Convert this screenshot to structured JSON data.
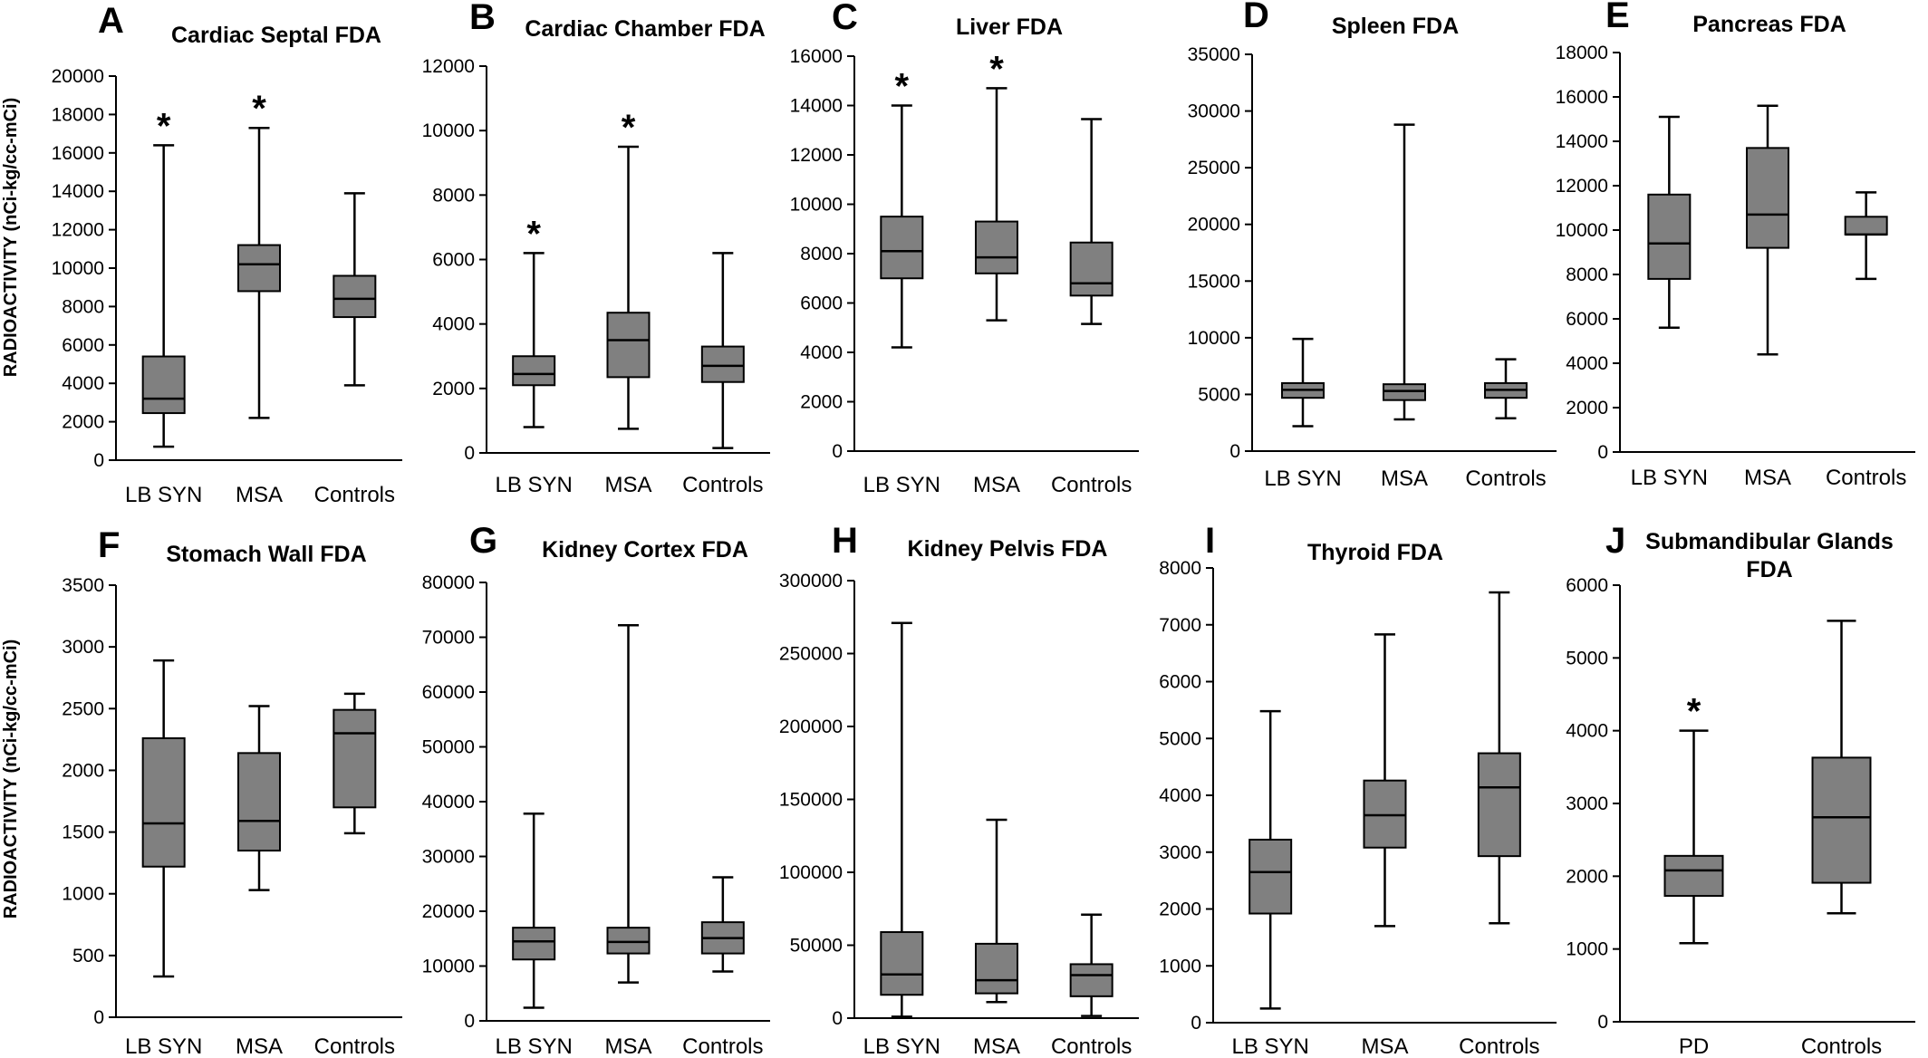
{
  "y_axis_label": "RADIOACTIVITY (nCi-kg/cc-mCi)",
  "colors": {
    "box_fill": "#808080",
    "stroke": "#000000"
  },
  "chart_data": [
    {
      "letter": "A",
      "title": "Cardiac Septal FDA",
      "type": "boxplot",
      "ylim": [
        0,
        20000
      ],
      "yticks": [
        0,
        2000,
        4000,
        6000,
        8000,
        10000,
        12000,
        14000,
        16000,
        18000,
        20000
      ],
      "categories": [
        "LB SYN",
        "MSA",
        "Controls"
      ],
      "boxes": [
        {
          "min": 700,
          "q1": 2450,
          "median": 3200,
          "q3": 5400,
          "max": 16400,
          "star": true
        },
        {
          "min": 2200,
          "q1": 8800,
          "median": 10200,
          "q3": 11200,
          "max": 17300,
          "star": true
        },
        {
          "min": 3900,
          "q1": 7450,
          "median": 8400,
          "q3": 9600,
          "max": 13900,
          "star": false
        }
      ]
    },
    {
      "letter": "B",
      "title": "Cardiac Chamber FDA",
      "type": "boxplot",
      "ylim": [
        0,
        12000
      ],
      "yticks": [
        0,
        2000,
        4000,
        6000,
        8000,
        10000,
        12000
      ],
      "categories": [
        "LB SYN",
        "MSA",
        "Controls"
      ],
      "boxes": [
        {
          "min": 800,
          "q1": 2100,
          "median": 2450,
          "q3": 3000,
          "max": 6200,
          "star": true
        },
        {
          "min": 750,
          "q1": 2350,
          "median": 3500,
          "q3": 4350,
          "max": 9500,
          "star": true
        },
        {
          "min": 150,
          "q1": 2200,
          "median": 2700,
          "q3": 3300,
          "max": 6200,
          "star": false
        }
      ]
    },
    {
      "letter": "C",
      "title": "Liver FDA",
      "type": "boxplot",
      "ylim": [
        0,
        16000
      ],
      "yticks": [
        0,
        2000,
        4000,
        6000,
        8000,
        10000,
        12000,
        14000,
        16000
      ],
      "categories": [
        "LB SYN",
        "MSA",
        "Controls"
      ],
      "boxes": [
        {
          "min": 4200,
          "q1": 7000,
          "median": 8100,
          "q3": 9500,
          "max": 14000,
          "star": true
        },
        {
          "min": 5300,
          "q1": 7200,
          "median": 7850,
          "q3": 9300,
          "max": 14700,
          "star": true
        },
        {
          "min": 5150,
          "q1": 6300,
          "median": 6800,
          "q3": 8450,
          "max": 13450,
          "star": false
        }
      ]
    },
    {
      "letter": "D",
      "title": "Spleen FDA",
      "type": "boxplot",
      "ylim": [
        0,
        35000
      ],
      "yticks": [
        0,
        5000,
        10000,
        15000,
        20000,
        25000,
        30000,
        35000
      ],
      "categories": [
        "LB SYN",
        "MSA",
        "Controls"
      ],
      "boxes": [
        {
          "min": 2200,
          "q1": 4700,
          "median": 5400,
          "q3": 6000,
          "max": 9900,
          "star": false
        },
        {
          "min": 2800,
          "q1": 4500,
          "median": 5300,
          "q3": 5900,
          "max": 28800,
          "star": false
        },
        {
          "min": 2900,
          "q1": 4700,
          "median": 5400,
          "q3": 6000,
          "max": 8100,
          "star": false
        }
      ]
    },
    {
      "letter": "E",
      "title": "Pancreas FDA",
      "type": "boxplot",
      "ylim": [
        0,
        18000
      ],
      "yticks": [
        0,
        2000,
        4000,
        6000,
        8000,
        10000,
        12000,
        14000,
        16000,
        18000
      ],
      "categories": [
        "LB SYN",
        "MSA",
        "Controls"
      ],
      "boxes": [
        {
          "min": 5600,
          "q1": 7800,
          "median": 9400,
          "q3": 11600,
          "max": 15100,
          "star": false
        },
        {
          "min": 4400,
          "q1": 9200,
          "median": 10700,
          "q3": 13700,
          "max": 15600,
          "star": false
        },
        {
          "min": 7800,
          "q1": 9800,
          "median": 9800,
          "q3": 10600,
          "max": 11700,
          "star": false
        }
      ]
    },
    {
      "letter": "F",
      "title": "Stomach Wall FDA",
      "type": "boxplot",
      "ylim": [
        0,
        3500
      ],
      "yticks": [
        0,
        500,
        1000,
        1500,
        2000,
        2500,
        3000,
        3500
      ],
      "categories": [
        "LB SYN",
        "MSA",
        "Controls"
      ],
      "boxes": [
        {
          "min": 330,
          "q1": 1220,
          "median": 1570,
          "q3": 2260,
          "max": 2890,
          "star": false
        },
        {
          "min": 1030,
          "q1": 1350,
          "median": 1590,
          "q3": 2140,
          "max": 2520,
          "star": false
        },
        {
          "min": 1490,
          "q1": 1700,
          "median": 2300,
          "q3": 2490,
          "max": 2620,
          "star": false
        }
      ]
    },
    {
      "letter": "G",
      "title": "Kidney Cortex FDA",
      "type": "boxplot",
      "ylim": [
        0,
        80000
      ],
      "yticks": [
        0,
        10000,
        20000,
        30000,
        40000,
        50000,
        60000,
        70000,
        80000
      ],
      "categories": [
        "LB SYN",
        "MSA",
        "Controls"
      ],
      "boxes": [
        {
          "min": 2400,
          "q1": 11200,
          "median": 14500,
          "q3": 17000,
          "max": 37800,
          "star": false
        },
        {
          "min": 7000,
          "q1": 12300,
          "median": 14400,
          "q3": 17000,
          "max": 72200,
          "star": false
        },
        {
          "min": 9000,
          "q1": 12300,
          "median": 15100,
          "q3": 18000,
          "max": 26200,
          "star": false
        }
      ]
    },
    {
      "letter": "H",
      "title": "Kidney Pelvis FDA",
      "type": "boxplot",
      "ylim": [
        0,
        300000
      ],
      "yticks": [
        0,
        50000,
        100000,
        150000,
        200000,
        250000,
        300000
      ],
      "categories": [
        "LB SYN",
        "MSA",
        "Controls"
      ],
      "boxes": [
        {
          "min": 1000,
          "q1": 16000,
          "median": 30000,
          "q3": 59000,
          "max": 271000,
          "star": false
        },
        {
          "min": 11000,
          "q1": 17000,
          "median": 26000,
          "q3": 51000,
          "max": 136000,
          "star": false
        },
        {
          "min": 1500,
          "q1": 15000,
          "median": 29500,
          "q3": 37000,
          "max": 71000,
          "star": false
        }
      ]
    },
    {
      "letter": "I",
      "title": "Thyroid FDA",
      "type": "boxplot",
      "ylim": [
        0,
        8000
      ],
      "yticks": [
        0,
        1000,
        2000,
        3000,
        4000,
        5000,
        6000,
        7000,
        8000
      ],
      "categories": [
        "LB SYN",
        "MSA",
        "Controls"
      ],
      "boxes": [
        {
          "min": 250,
          "q1": 1920,
          "median": 2650,
          "q3": 3220,
          "max": 5480,
          "star": false
        },
        {
          "min": 1700,
          "q1": 3080,
          "median": 3650,
          "q3": 4260,
          "max": 6830,
          "star": false
        },
        {
          "min": 1750,
          "q1": 2930,
          "median": 4140,
          "q3": 4740,
          "max": 7570,
          "star": false
        }
      ]
    },
    {
      "letter": "J",
      "title": "Submandibular Glands",
      "title2": "FDA",
      "type": "boxplot",
      "ylim": [
        0,
        6000
      ],
      "yticks": [
        0,
        1000,
        2000,
        3000,
        4000,
        5000,
        6000
      ],
      "categories": [
        "PD",
        "Controls"
      ],
      "boxes": [
        {
          "min": 1080,
          "q1": 1730,
          "median": 2080,
          "q3": 2280,
          "max": 4000,
          "star": true
        },
        {
          "min": 1490,
          "q1": 1910,
          "median": 2810,
          "q3": 3630,
          "max": 5510,
          "star": false
        }
      ]
    }
  ]
}
